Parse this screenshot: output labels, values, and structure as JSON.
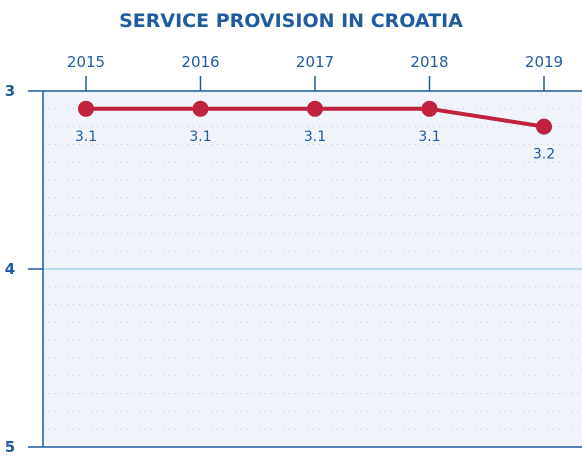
{
  "chart_data": {
    "type": "line",
    "title": "SERVICE PROVISION IN CROATIA",
    "x": [
      "2015",
      "2016",
      "2017",
      "2018",
      "2019"
    ],
    "series": [
      {
        "values": [
          3.1,
          3.1,
          3.1,
          3.1,
          3.2
        ]
      }
    ],
    "data_labels": [
      "3.1",
      "3.1",
      "3.1",
      "3.1",
      "3.2"
    ],
    "y_ticks": [
      "3",
      "4",
      "5"
    ],
    "ylim": [
      3,
      5
    ],
    "y_inverted": true,
    "x_axis_position": "top",
    "grid": true,
    "colors": {
      "title": "#1f5b9e",
      "tick": "#1f5b9e",
      "axis": "#1f5b9e",
      "line": "#c0223f",
      "plot_bg": "#f1f5fb",
      "grid_major": "#a9d3ea",
      "grid_minor": "#b7c6d8"
    }
  }
}
